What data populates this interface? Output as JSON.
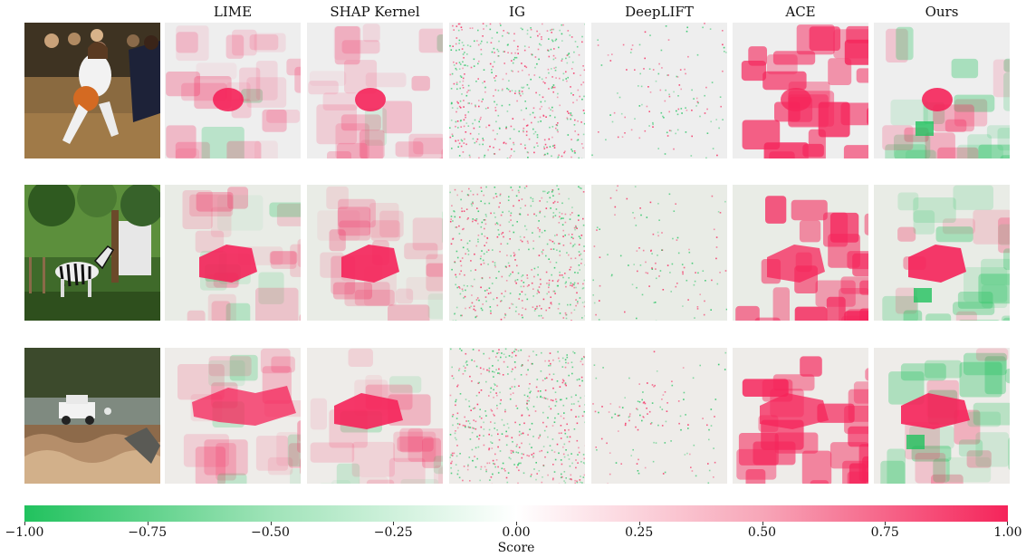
{
  "columns": [
    "LIME",
    "SHAP Kernel",
    "IG",
    "DeepLIFT",
    "ACE",
    "Ours"
  ],
  "rows": [
    {
      "input": "basketball-player",
      "maps": [
        "lime",
        "shap",
        "ig",
        "deeplift",
        "ace",
        "ours"
      ]
    },
    {
      "input": "zebra",
      "maps": [
        "lime",
        "shap",
        "ig",
        "deeplift",
        "ace",
        "ours"
      ]
    },
    {
      "input": "jeep-in-river",
      "maps": [
        "lime",
        "shap",
        "ig",
        "deeplift",
        "ace",
        "ours"
      ]
    }
  ],
  "colorbar": {
    "label": "Score",
    "ticks": [
      {
        "label": "−1.00",
        "value": -1.0
      },
      {
        "label": "−0.75",
        "value": -0.75
      },
      {
        "label": "−0.50",
        "value": -0.5
      },
      {
        "label": "−0.25",
        "value": -0.25
      },
      {
        "label": "0.00",
        "value": 0.0
      },
      {
        "label": "0.25",
        "value": 0.25
      },
      {
        "label": "0.50",
        "value": 0.5
      },
      {
        "label": "0.75",
        "value": 0.75
      },
      {
        "label": "1.00",
        "value": 1.0
      }
    ],
    "colors": {
      "negative": "#21c25e",
      "neutral": "#ffffff",
      "positive": "#f5245a"
    }
  }
}
